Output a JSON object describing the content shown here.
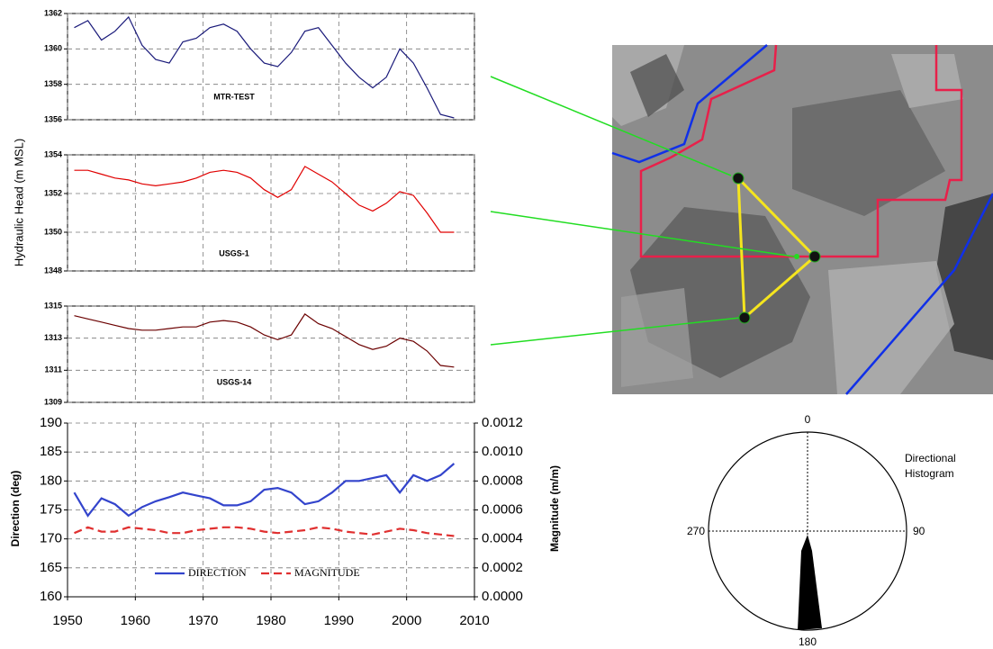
{
  "shared_ylabel": "Hydraulic Head (m MSL)",
  "chart_data": [
    {
      "type": "line",
      "title": "MTR-TEST",
      "ylim": [
        1356,
        1362
      ],
      "yticks": [
        1356,
        1358,
        1360,
        1362
      ],
      "grid": true,
      "x": [
        1951,
        1953,
        1955,
        1957,
        1959,
        1961,
        1963,
        1965,
        1967,
        1969,
        1971,
        1973,
        1975,
        1977,
        1979,
        1981,
        1983,
        1985,
        1987,
        1989,
        1991,
        1993,
        1995,
        1997,
        1999,
        2001,
        2003,
        2005,
        2007
      ],
      "series": [
        {
          "color": "#1a1a7a",
          "values": [
            1361.2,
            1361.6,
            1360.5,
            1361,
            1361.8,
            1360.2,
            1359.4,
            1359.2,
            1360.4,
            1360.6,
            1361.2,
            1361.4,
            1361,
            1360,
            1359.2,
            1359,
            1359.8,
            1361,
            1361.2,
            1360.2,
            1359.2,
            1358.4,
            1357.8,
            1358.4,
            1360,
            1359.2,
            1357.8,
            1356.3,
            1356.1
          ]
        }
      ]
    },
    {
      "type": "line",
      "title": "USGS-1",
      "ylim": [
        1348,
        1354
      ],
      "yticks": [
        1348,
        1350,
        1352,
        1354
      ],
      "grid": true,
      "x": [
        1951,
        1953,
        1955,
        1957,
        1959,
        1961,
        1963,
        1965,
        1967,
        1969,
        1971,
        1973,
        1975,
        1977,
        1979,
        1981,
        1983,
        1985,
        1987,
        1989,
        1991,
        1993,
        1995,
        1997,
        1999,
        2001,
        2003,
        2005,
        2007
      ],
      "series": [
        {
          "color": "#e00000",
          "values": [
            1353.2,
            1353.2,
            1353,
            1352.8,
            1352.7,
            1352.5,
            1352.4,
            1352.5,
            1352.6,
            1352.8,
            1353.1,
            1353.2,
            1353.1,
            1352.8,
            1352.2,
            1351.8,
            1352.2,
            1353.4,
            1353,
            1352.6,
            1352,
            1351.4,
            1351.1,
            1351.5,
            1352.1,
            1351.9,
            1351,
            1350,
            1350
          ]
        }
      ]
    },
    {
      "type": "line",
      "title": "USGS-14",
      "ylim": [
        1309,
        1315
      ],
      "yticks": [
        1309,
        1311,
        1313,
        1315
      ],
      "grid": true,
      "x": [
        1951,
        1953,
        1955,
        1957,
        1959,
        1961,
        1963,
        1965,
        1967,
        1969,
        1971,
        1973,
        1975,
        1977,
        1979,
        1981,
        1983,
        1985,
        1987,
        1989,
        1991,
        1993,
        1995,
        1997,
        1999,
        2001,
        2003,
        2005,
        2007
      ],
      "series": [
        {
          "color": "#6b0000",
          "values": [
            1314.4,
            1314.2,
            1314,
            1313.8,
            1313.6,
            1313.5,
            1313.5,
            1313.6,
            1313.7,
            1313.7,
            1314,
            1314.1,
            1314,
            1313.7,
            1313.2,
            1312.9,
            1313.2,
            1314.5,
            1313.9,
            1313.6,
            1313.1,
            1312.6,
            1312.3,
            1312.5,
            1313,
            1312.8,
            1312.2,
            1311.3,
            1311.2
          ]
        }
      ]
    },
    {
      "type": "line",
      "ylabel": "Direction (deg)",
      "y2label": "Magnitude (m/m)",
      "xlim": [
        1950,
        2010
      ],
      "xticks": [
        1950,
        1960,
        1970,
        1980,
        1990,
        2000,
        2010
      ],
      "ylim": [
        160,
        190
      ],
      "yticks": [
        160,
        165,
        170,
        175,
        180,
        185,
        190
      ],
      "y2lim": [
        0,
        0.0012
      ],
      "y2ticks": [
        {
          "value": 0,
          "label": "0.0000"
        },
        {
          "value": 0.0002,
          "label": "0.0002"
        },
        {
          "value": 0.0004,
          "label": "0.0004"
        },
        {
          "value": 0.0006,
          "label": "0.0006"
        },
        {
          "value": 0.0008,
          "label": "0.0008"
        },
        {
          "value": 0.001,
          "label": "0.0010"
        },
        {
          "value": 0.0012,
          "label": "0.0012"
        }
      ],
      "grid": true,
      "x": [
        1951,
        1953,
        1955,
        1957,
        1959,
        1961,
        1963,
        1965,
        1967,
        1969,
        1971,
        1973,
        1975,
        1977,
        1979,
        1981,
        1983,
        1985,
        1987,
        1989,
        1991,
        1993,
        1995,
        1997,
        1999,
        2001,
        2003,
        2005,
        2007
      ],
      "series": [
        {
          "name": "DIRECTION",
          "color": "#3344cc",
          "linestyle": "solid",
          "values": [
            178,
            174,
            177,
            176,
            174,
            175.5,
            176.5,
            177.2,
            178,
            177.5,
            177,
            175.8,
            175.8,
            176.5,
            178.5,
            178.8,
            178,
            176,
            176.5,
            178,
            180,
            180,
            180.5,
            181,
            178,
            181,
            180,
            181,
            183
          ]
        },
        {
          "name": "MAGNITUDE",
          "color": "#e03030",
          "linestyle": "dashed",
          "axis": "y2",
          "values": [
            0.00044,
            0.00048,
            0.00045,
            0.00045,
            0.00048,
            0.00047,
            0.00046,
            0.00044,
            0.00044,
            0.00046,
            0.00047,
            0.00048,
            0.00048,
            0.00047,
            0.00045,
            0.00044,
            0.00045,
            0.00046,
            0.00048,
            0.00047,
            0.00045,
            0.00044,
            0.00043,
            0.00045,
            0.00047,
            0.00046,
            0.00044,
            0.00043,
            0.00042
          ]
        }
      ]
    }
  ],
  "rose": {
    "title_line1": "Directional",
    "title_line2": "Histogram",
    "angle_labels": [
      "0",
      "90",
      "180",
      "270"
    ]
  }
}
